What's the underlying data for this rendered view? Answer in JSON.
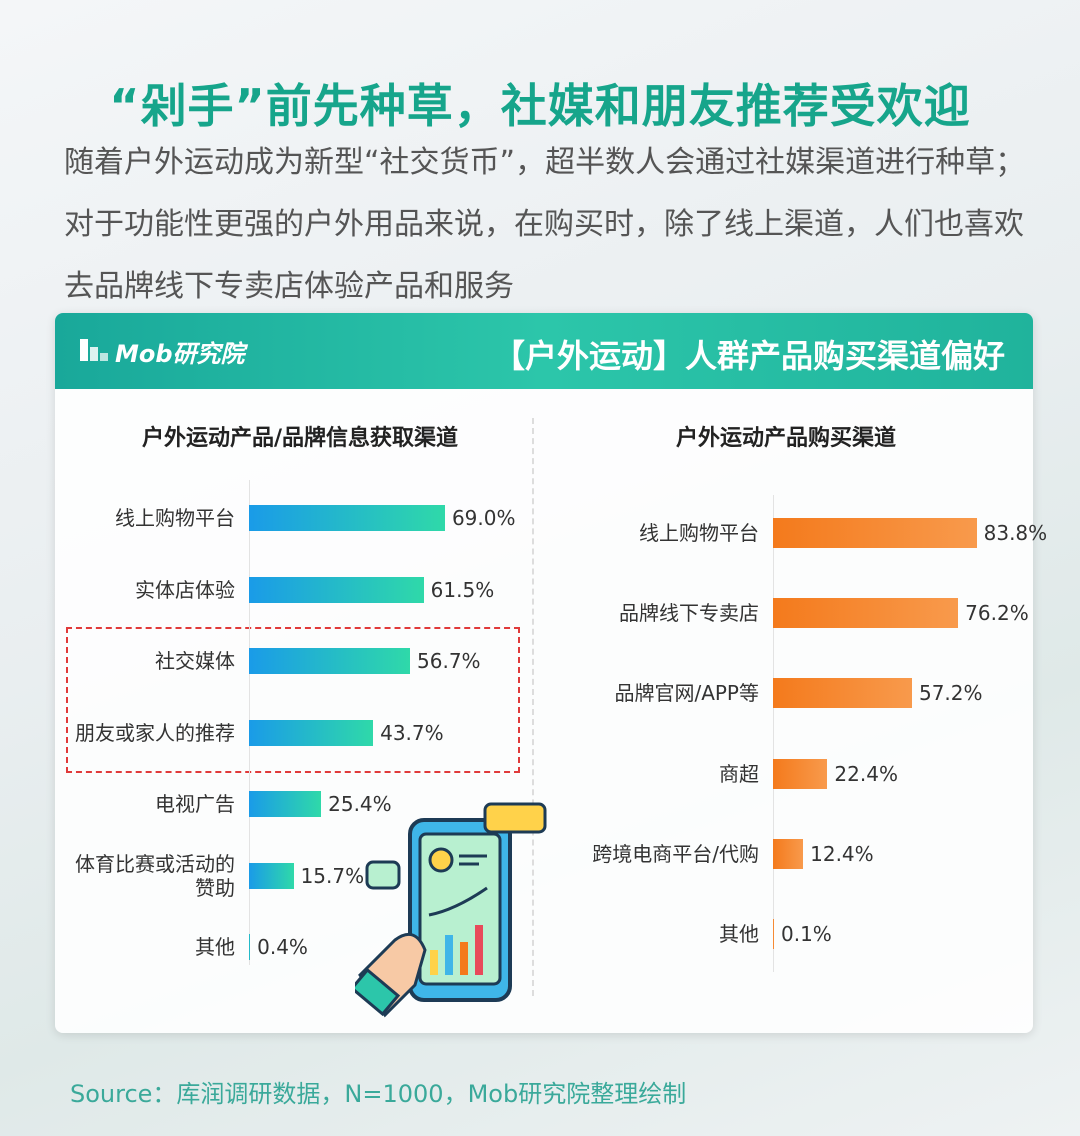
{
  "header": {
    "title": "“剁手”前先种草，社媒和朋友推荐受欢迎",
    "description": "随着户外运动成为新型“社交货币”，超半数人会通过社媒渠道进行种草；对于功能性更强的户外用品来说，在购买时，除了线上渠道，人们也喜欢去品牌线下专卖店体验产品和服务"
  },
  "banner": {
    "logo": "Mob研究院",
    "title": "【户外运动】人群产品购买渠道偏好"
  },
  "chart_data": [
    {
      "type": "bar",
      "orientation": "horizontal",
      "title": "户外运动产品/品牌信息获取渠道",
      "categories": [
        "线上购物平台",
        "实体店体验",
        "社交媒体",
        "朋友或家人的推荐",
        "电视广告",
        "体育比赛或活动的赞助",
        "其他"
      ],
      "values": [
        69.0,
        61.5,
        56.7,
        43.7,
        25.4,
        15.7,
        0.4
      ],
      "value_labels": [
        "69.0%",
        "61.5%",
        "56.7%",
        "43.7%",
        "25.4%",
        "15.7%",
        "0.4%"
      ],
      "color": [
        "#1a9be8",
        "#2fd9a9"
      ]
    },
    {
      "type": "bar",
      "orientation": "horizontal",
      "title": "户外运动产品购买渠道",
      "categories": [
        "线上购物平台",
        "品牌线下专卖店",
        "品牌官网/APP等",
        "商超",
        "跨境电商平台/代购",
        "其他"
      ],
      "values": [
        83.8,
        76.2,
        57.2,
        22.4,
        12.4,
        0.1
      ],
      "value_labels": [
        "83.8%",
        "76.2%",
        "57.2%",
        "22.4%",
        "12.4%",
        "0.1%"
      ],
      "color": [
        "#f47a1c",
        "#f89a4c"
      ]
    }
  ],
  "source": "Source：库润调研数据，N=1000，Mob研究院整理绘制"
}
